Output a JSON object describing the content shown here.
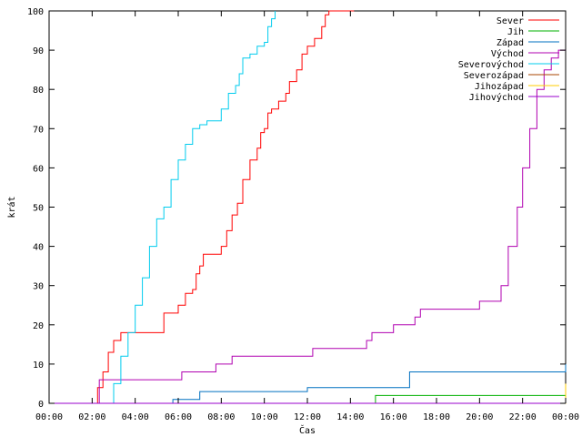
{
  "chart_data": {
    "type": "line",
    "title": "",
    "xlabel": "Čas",
    "ylabel": "krát",
    "xlim": [
      "00:00",
      "24:00"
    ],
    "ylim": [
      0,
      100
    ],
    "x_ticks": [
      "00:00",
      "02:00",
      "04:00",
      "06:00",
      "08:00",
      "10:00",
      "12:00",
      "14:00",
      "16:00",
      "18:00",
      "20:00",
      "22:00",
      "00:00"
    ],
    "y_ticks": [
      0,
      10,
      20,
      30,
      40,
      50,
      60,
      70,
      80,
      90,
      100
    ],
    "grid": false,
    "legend_position": "top-right",
    "series": [
      {
        "name": "Sever",
        "color": "#ff0000",
        "x": [
          "02:10",
          "02:15",
          "02:30",
          "02:45",
          "03:00",
          "03:20",
          "05:00",
          "05:20",
          "05:40",
          "06:00",
          "06:20",
          "06:40",
          "06:50",
          "07:00",
          "07:10",
          "07:20",
          "07:30",
          "08:00",
          "08:15",
          "08:30",
          "08:45",
          "09:00",
          "09:20",
          "09:40",
          "09:50",
          "10:00",
          "10:10",
          "10:20",
          "10:40",
          "11:00",
          "11:10",
          "11:30",
          "11:45",
          "12:00",
          "12:20",
          "12:40",
          "12:50",
          "13:00",
          "13:20",
          "13:40",
          "14:00",
          "14:10"
        ],
        "values": [
          0,
          4,
          8,
          13,
          16,
          18,
          18,
          23,
          23,
          25,
          28,
          29,
          33,
          35,
          38,
          38,
          38,
          40,
          44,
          48,
          51,
          57,
          62,
          65,
          69,
          70,
          74,
          75,
          77,
          79,
          82,
          85,
          89,
          91,
          93,
          96,
          99,
          100,
          100,
          100,
          100,
          100
        ]
      },
      {
        "name": "Jih",
        "color": "#00b000",
        "x": [
          "15:05",
          "15:10",
          "23:55",
          "24:00"
        ],
        "values": [
          0,
          2,
          2,
          2
        ]
      },
      {
        "name": "Západ",
        "color": "#0070c0",
        "x": [
          "05:40",
          "05:45",
          "06:50",
          "07:00",
          "12:00",
          "16:30",
          "16:45",
          "24:00"
        ],
        "values": [
          0,
          1,
          1,
          3,
          4,
          4,
          8,
          10
        ]
      },
      {
        "name": "Východ",
        "color": "#b000b0",
        "x": [
          "02:15",
          "02:20",
          "06:00",
          "06:10",
          "07:30",
          "07:45",
          "08:30",
          "12:00",
          "12:15",
          "13:30",
          "14:00",
          "14:45",
          "15:00",
          "15:20",
          "16:00",
          "16:30",
          "17:00",
          "17:15",
          "17:40",
          "18:00",
          "19:00",
          "20:00",
          "20:50",
          "21:00",
          "21:20",
          "21:45",
          "22:00",
          "22:20",
          "22:40",
          "23:00",
          "23:20",
          "23:40",
          "24:00"
        ],
        "values": [
          0,
          6,
          6,
          8,
          8,
          10,
          12,
          12,
          14,
          14,
          14,
          16,
          18,
          18,
          20,
          20,
          22,
          24,
          24,
          24,
          24,
          26,
          26,
          30,
          40,
          50,
          60,
          70,
          80,
          85,
          88,
          90,
          90
        ]
      },
      {
        "name": "Severovýchod",
        "color": "#00ccee",
        "x": [
          "02:45",
          "03:00",
          "03:20",
          "03:40",
          "04:00",
          "04:20",
          "04:40",
          "05:00",
          "05:20",
          "05:40",
          "06:00",
          "06:20",
          "06:40",
          "07:00",
          "07:20",
          "07:40",
          "07:50",
          "08:00",
          "08:20",
          "08:40",
          "08:50",
          "09:00",
          "09:20",
          "09:40",
          "10:00",
          "10:10",
          "10:20",
          "10:30"
        ],
        "values": [
          0,
          5,
          12,
          18,
          25,
          32,
          40,
          47,
          50,
          57,
          62,
          66,
          70,
          71,
          72,
          72,
          72,
          75,
          79,
          81,
          84,
          88,
          89,
          91,
          92,
          96,
          98,
          100
        ]
      },
      {
        "name": "Severozápad",
        "color": "#aa4400",
        "x": [
          "00:00",
          "24:00"
        ],
        "values": [
          0,
          0
        ]
      },
      {
        "name": "Jihozápad",
        "color": "#ffcc00",
        "x": [
          "23:55",
          "24:00"
        ],
        "values": [
          0,
          5
        ]
      },
      {
        "name": "Jihovýchod",
        "color": "#9900cc",
        "x": [
          "00:00",
          "24:00"
        ],
        "values": [
          0,
          0
        ]
      }
    ]
  }
}
